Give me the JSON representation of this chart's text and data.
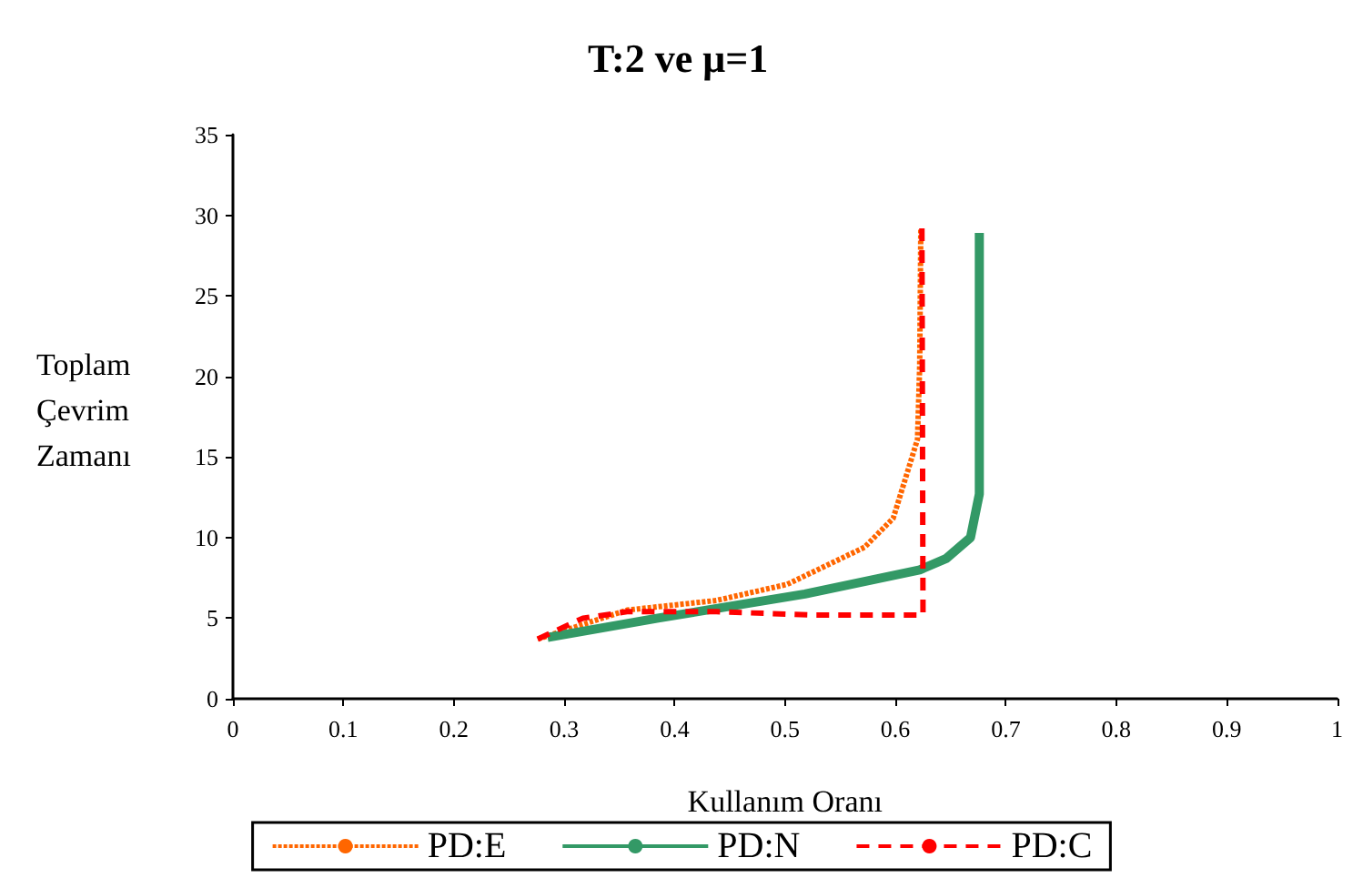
{
  "chart_data": {
    "type": "line",
    "title": "T:2 ve μ=1",
    "xlabel": "Kullanım Oranı",
    "ylabel": "Toplam\nÇevrim\nZamanı",
    "xlim": [
      0,
      1
    ],
    "xticks": [
      0,
      0.1,
      0.2,
      0.3,
      0.4,
      0.5,
      0.6,
      0.7,
      0.8,
      0.9,
      1
    ],
    "ylim": [
      0,
      35
    ],
    "yticks": [
      0,
      5,
      10,
      15,
      20,
      25,
      30,
      35
    ],
    "grid": false,
    "legend": "bottom",
    "marker": "none",
    "series": [
      {
        "name": "PD:E",
        "color": "#ff6600",
        "line_style": "dotted",
        "x": [
          0.276,
          0.357,
          0.438,
          0.502,
          0.572,
          0.598,
          0.62,
          0.622,
          0.623
        ],
        "values": [
          3.7,
          5.5,
          6.1,
          7.1,
          9.4,
          11.2,
          16.1,
          20.7,
          29.2
        ]
      },
      {
        "name": "PD:N",
        "color": "#339966",
        "line_style": "solid",
        "x": [
          0.285,
          0.385,
          0.518,
          0.622,
          0.646,
          0.668,
          0.676,
          0.676
        ],
        "values": [
          3.8,
          5.0,
          6.5,
          8.0,
          8.7,
          10.0,
          12.7,
          28.9
        ]
      },
      {
        "name": "PD:C",
        "color": "#ff0000",
        "line_style": "dashed",
        "x": [
          0.276,
          0.317,
          0.357,
          0.438,
          0.524,
          0.625,
          0.624
        ],
        "values": [
          3.7,
          5.0,
          5.4,
          5.4,
          5.2,
          5.2,
          29.2
        ]
      }
    ]
  }
}
